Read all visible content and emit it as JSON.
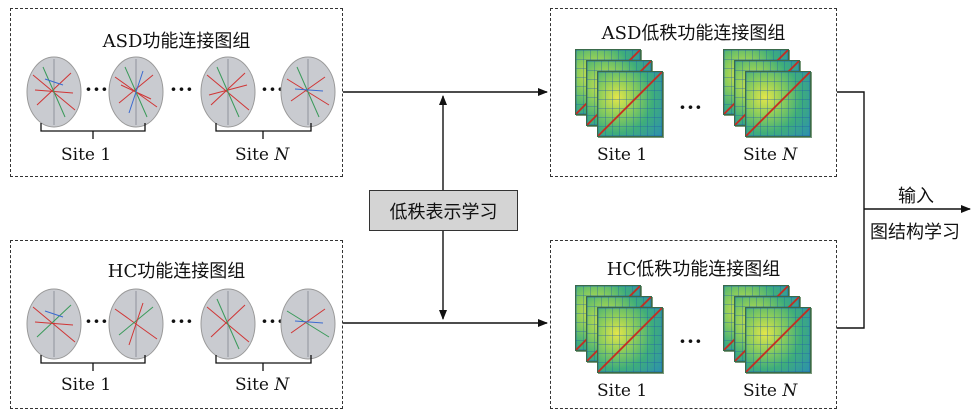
{
  "boxes": {
    "asd_fc": {
      "title": "ASD功能连接图组",
      "site_left": "Site 1",
      "site_right_prefix": "Site ",
      "site_right_var": "N"
    },
    "hc_fc": {
      "title": "HC功能连接图组",
      "site_left": "Site 1",
      "site_right_prefix": "Site ",
      "site_right_var": "N"
    },
    "asd_lr": {
      "title": "ASD低秩功能连接图组",
      "site_left": "Site 1",
      "site_right_prefix": "Site ",
      "site_right_var": "N"
    },
    "hc_lr": {
      "title": "HC低秩功能连接图组",
      "site_left": "Site 1",
      "site_right_prefix": "Site ",
      "site_right_var": "N"
    }
  },
  "center_label": "低秩表示学习",
  "output": {
    "line1": "输入",
    "line2": "图结构学习"
  },
  "ellipsis": "···"
}
